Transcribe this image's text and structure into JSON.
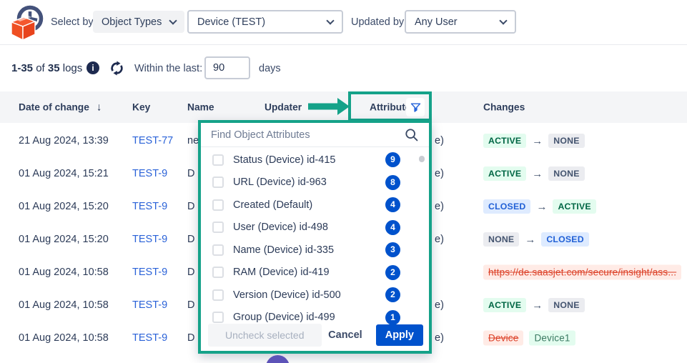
{
  "topbar": {
    "select_by_label": "Select by:",
    "object_types_button": "Object Types",
    "object_type_select_value": "Device (TEST)",
    "updated_by_label": "Updated by:",
    "user_select_value": "Any User"
  },
  "toolbar": {
    "count_range": "1-35",
    "of_word": "of",
    "count_total": "35",
    "logs_word": "logs",
    "within_label": "Within the last:",
    "days_value": "90",
    "days_word": "days"
  },
  "table": {
    "columns": {
      "date": "Date of change",
      "key": "Key",
      "name": "Name",
      "updater": "Updater",
      "attribute": "Attribute",
      "changes": "Changes"
    },
    "rows": [
      {
        "date": "21 Aug 2024, 13:39",
        "key": "TEST-77",
        "name_partial": "ne",
        "attribute_partial": "e)",
        "change": [
          {
            "text": "ACTIVE",
            "style": "green"
          },
          {
            "arrow": true
          },
          {
            "text": "NONE",
            "style": "gray"
          }
        ]
      },
      {
        "date": "01 Aug 2024, 15:21",
        "key": "TEST-9",
        "name_partial": "D",
        "attribute_partial": "e)",
        "change": [
          {
            "text": "ACTIVE",
            "style": "green"
          },
          {
            "arrow": true
          },
          {
            "text": "NONE",
            "style": "gray"
          }
        ]
      },
      {
        "date": "01 Aug 2024, 15:20",
        "key": "TEST-9",
        "name_partial": "D",
        "attribute_partial": "e)",
        "change": [
          {
            "text": "CLOSED",
            "style": "blue"
          },
          {
            "arrow": true
          },
          {
            "text": "ACTIVE",
            "style": "green"
          }
        ]
      },
      {
        "date": "01 Aug 2024, 15:20",
        "key": "TEST-9",
        "name_partial": "D",
        "attribute_partial": "e)",
        "change": [
          {
            "text": "NONE",
            "style": "gray"
          },
          {
            "arrow": true
          },
          {
            "text": "CLOSED",
            "style": "blue"
          }
        ]
      },
      {
        "date": "01 Aug 2024, 10:58",
        "key": "TEST-9",
        "name_partial": "D",
        "attribute_partial": "",
        "change": [
          {
            "text": "https://de.saasjet.com/secure/insight/ass...",
            "style": "red",
            "strike": true
          }
        ]
      },
      {
        "date": "01 Aug 2024, 10:58",
        "key": "TEST-9",
        "name_partial": "D",
        "attribute_partial": "e)",
        "change": [
          {
            "text": "ACTIVE",
            "style": "green"
          },
          {
            "arrow": true
          },
          {
            "text": "NONE",
            "style": "gray"
          }
        ]
      },
      {
        "date": "01 Aug 2024, 10:58",
        "key": "TEST-9",
        "name_partial": "D",
        "attribute_partial": "e)",
        "change": [
          {
            "text": "Device",
            "style": "red",
            "strike": true
          },
          {
            "text": "Device1",
            "style": "green2"
          }
        ]
      }
    ]
  },
  "popup": {
    "search_placeholder": "Find Object Attributes",
    "items": [
      {
        "label": "Status (Device) id-415",
        "count": "9"
      },
      {
        "label": "URL (Device) id-963",
        "count": "8"
      },
      {
        "label": "Created (Default)",
        "count": "4"
      },
      {
        "label": "User (Device) id-498",
        "count": "4"
      },
      {
        "label": "Name (Device) id-335",
        "count": "3"
      },
      {
        "label": "RAM (Device) id-419",
        "count": "2"
      },
      {
        "label": "Version (Device) id-500",
        "count": "2"
      },
      {
        "label": "Group (Device) id-499",
        "count": "1"
      }
    ],
    "uncheck_label": "Uncheck selected",
    "cancel_label": "Cancel",
    "apply_label": "Apply"
  },
  "colors": {
    "annotation_green": "#15a289",
    "link_blue": "#2a62d8",
    "primary_blue": "#0052cc",
    "badge_green_bg": "#e3fcef",
    "badge_gray_bg": "#ebecf0",
    "badge_blue_bg": "#deebff",
    "badge_red_bg": "#ffebe6"
  }
}
